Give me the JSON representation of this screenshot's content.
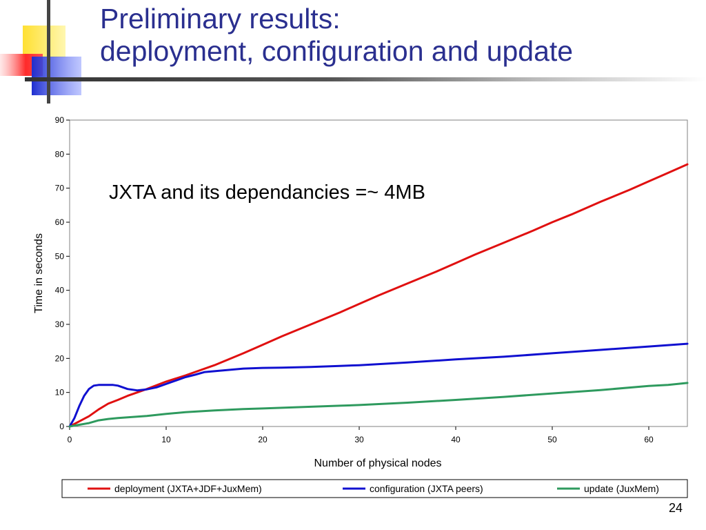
{
  "slide": {
    "title_line1": "Preliminary results:",
    "title_line2": "deployment, configuration and update",
    "page_number": "24",
    "title_color": "#2a2f8f"
  },
  "logo": {
    "icon": "colored-squares-logo-icon",
    "colors": [
      "#ffe033",
      "#ff3333",
      "#2233cc",
      "#444444"
    ]
  },
  "chart_data": {
    "type": "line",
    "title": "",
    "xlabel": "Number of physical nodes",
    "ylabel": "Time in seconds",
    "xlim": [
      0,
      64
    ],
    "ylim": [
      0,
      90
    ],
    "xticks": [
      0,
      10,
      20,
      30,
      40,
      50,
      60
    ],
    "yticks": [
      0,
      10,
      20,
      30,
      40,
      50,
      60,
      70,
      80,
      90
    ],
    "grid": false,
    "legend_position": "bottom",
    "annotation": "JXTA and its dependancies =~ 4MB",
    "series": [
      {
        "name": "deployment (JXTA+JDF+JuxMem)",
        "color": "#e01010",
        "points": [
          [
            0,
            0
          ],
          [
            1,
            1.5
          ],
          [
            2,
            3
          ],
          [
            3,
            5
          ],
          [
            4,
            6.7
          ],
          [
            5,
            7.8
          ],
          [
            6,
            9
          ],
          [
            7,
            10
          ],
          [
            8,
            11
          ],
          [
            10,
            13.2
          ],
          [
            12,
            15
          ],
          [
            15,
            18
          ],
          [
            18,
            21.5
          ],
          [
            20,
            24
          ],
          [
            22,
            26.5
          ],
          [
            25,
            30
          ],
          [
            28,
            33.5
          ],
          [
            30,
            36
          ],
          [
            32,
            38.5
          ],
          [
            35,
            42
          ],
          [
            38,
            45.5
          ],
          [
            40,
            48
          ],
          [
            42,
            50.5
          ],
          [
            45,
            54
          ],
          [
            48,
            57.5
          ],
          [
            50,
            60
          ],
          [
            52,
            62.3
          ],
          [
            55,
            66
          ],
          [
            58,
            69.5
          ],
          [
            60,
            72
          ],
          [
            62,
            74.5
          ],
          [
            64,
            77
          ]
        ]
      },
      {
        "name": "configuration (JXTA peers)",
        "color": "#1010d0",
        "points": [
          [
            0,
            0
          ],
          [
            0.5,
            2.5
          ],
          [
            1,
            6
          ],
          [
            1.5,
            9
          ],
          [
            2,
            11
          ],
          [
            2.5,
            12
          ],
          [
            3,
            12.2
          ],
          [
            4,
            12.2
          ],
          [
            4.5,
            12.2
          ],
          [
            5,
            12
          ],
          [
            6,
            11
          ],
          [
            7,
            10.6
          ],
          [
            8,
            10.9
          ],
          [
            9,
            11.5
          ],
          [
            10,
            12.5
          ],
          [
            11,
            13.5
          ],
          [
            12,
            14.5
          ],
          [
            13,
            15.2
          ],
          [
            14,
            16
          ],
          [
            16,
            16.5
          ],
          [
            18,
            17
          ],
          [
            20,
            17.2
          ],
          [
            22,
            17.3
          ],
          [
            25,
            17.5
          ],
          [
            28,
            17.8
          ],
          [
            30,
            18
          ],
          [
            35,
            18.8
          ],
          [
            40,
            19.7
          ],
          [
            45,
            20.5
          ],
          [
            50,
            21.5
          ],
          [
            55,
            22.5
          ],
          [
            60,
            23.5
          ],
          [
            64,
            24.3
          ]
        ]
      },
      {
        "name": "update (JuxMem)",
        "color": "#2e9a5e",
        "points": [
          [
            0,
            0
          ],
          [
            1,
            0.5
          ],
          [
            2,
            1
          ],
          [
            3,
            1.8
          ],
          [
            4,
            2.2
          ],
          [
            5,
            2.5
          ],
          [
            6,
            2.7
          ],
          [
            7,
            2.9
          ],
          [
            8,
            3.1
          ],
          [
            10,
            3.7
          ],
          [
            12,
            4.2
          ],
          [
            15,
            4.7
          ],
          [
            18,
            5.1
          ],
          [
            20,
            5.3
          ],
          [
            22,
            5.5
          ],
          [
            25,
            5.8
          ],
          [
            28,
            6.1
          ],
          [
            30,
            6.3
          ],
          [
            35,
            7
          ],
          [
            40,
            7.8
          ],
          [
            45,
            8.7
          ],
          [
            50,
            9.7
          ],
          [
            55,
            10.7
          ],
          [
            60,
            11.9
          ],
          [
            62,
            12.2
          ],
          [
            64,
            12.8
          ]
        ]
      }
    ]
  }
}
